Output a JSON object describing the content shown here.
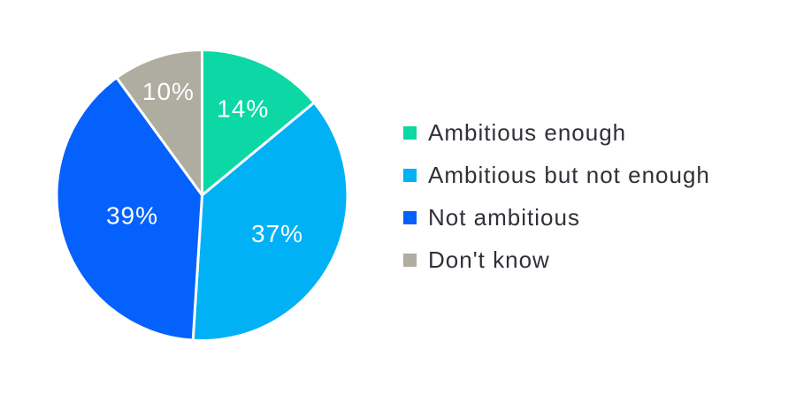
{
  "chart_data": {
    "type": "pie",
    "categories": [
      "Ambitious enough",
      "Ambitious but not enough",
      "Not ambitious",
      "Don't know"
    ],
    "values": [
      14,
      37,
      39,
      10
    ],
    "slice_labels": [
      "14%",
      "37%",
      "39%",
      "10%"
    ],
    "colors": [
      "#0BD8A4",
      "#00B1F5",
      "#0561FC",
      "#AEADA0"
    ],
    "label_color": "#FFFFFF",
    "separator_color": "#FFFFFF",
    "start_angle_deg": 0,
    "direction": "clockwise",
    "legend_position": "right",
    "label_radius_factors": [
      0.66,
      0.58,
      0.5,
      0.75
    ]
  }
}
